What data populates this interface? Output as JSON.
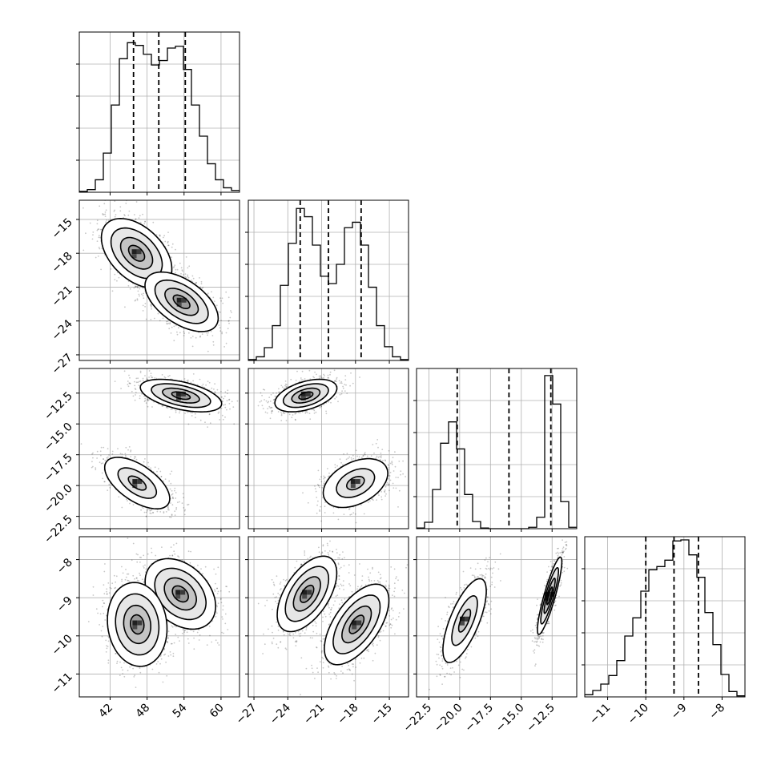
{
  "chart_data": {
    "type": "corner",
    "parameters": [
      {
        "index": 0,
        "range": [
          37,
          63
        ],
        "ticks": [
          42,
          48,
          54,
          60
        ],
        "tick_labels": [
          "42",
          "48",
          "54",
          "60"
        ],
        "quantiles": [
          45.8,
          49.9,
          54.2
        ]
      },
      {
        "index": 1,
        "range": [
          -27.5,
          -13.3
        ],
        "ticks": [
          -27,
          -24,
          -21,
          -18,
          -15
        ],
        "tick_labels": [
          "−27",
          "−24",
          "−21",
          "−18",
          "−15"
        ],
        "quantiles": [
          -22.9,
          -20.4,
          -17.5
        ]
      },
      {
        "index": 2,
        "range": [
          -23.5,
          -10.5
        ],
        "ticks": [
          -22.5,
          -20.0,
          -17.5,
          -15.0,
          -12.5
        ],
        "tick_labels": [
          "−22.5",
          "−20.0",
          "−17.5",
          "−15.0",
          "−12.5"
        ],
        "quantiles": [
          -20.2,
          -16.0,
          -12.6
        ]
      },
      {
        "index": 3,
        "range": [
          -11.6,
          -7.4
        ],
        "ticks": [
          -11,
          -10,
          -9,
          -8
        ],
        "tick_labels": [
          "−11",
          "−10",
          "−9",
          "−8"
        ],
        "quantiles": [
          -10.0,
          -9.26,
          -8.62
        ]
      }
    ],
    "histograms": [
      {
        "param": 0,
        "edges": [
          37.0,
          38.3,
          39.6,
          40.9,
          42.2,
          43.5,
          44.8,
          46.1,
          47.4,
          48.7,
          50.0,
          51.3,
          52.6,
          53.9,
          55.2,
          56.5,
          57.8,
          59.1,
          60.4,
          61.7,
          63.0
        ],
        "counts": [
          1,
          3,
          14,
          44,
          98,
          150,
          168,
          165,
          155,
          143,
          148,
          162,
          164,
          138,
          98,
          63,
          32,
          14,
          5,
          2
        ],
        "ymax": 180
      },
      {
        "param": 1,
        "edges": [
          -27.5,
          -26.79,
          -26.08,
          -25.37,
          -24.66,
          -23.95,
          -23.24,
          -22.53,
          -21.82,
          -21.11,
          -20.4,
          -19.69,
          -18.98,
          -18.27,
          -17.56,
          -16.85,
          -16.14,
          -15.43,
          -14.72,
          -14.01,
          -13.3
        ],
        "counts": [
          1,
          4,
          14,
          38,
          82,
          128,
          166,
          157,
          126,
          92,
          84,
          105,
          145,
          151,
          126,
          80,
          38,
          15,
          4,
          1
        ],
        "ymax": 175
      },
      {
        "param": 2,
        "edges": [
          -23.5,
          -22.85,
          -22.2,
          -21.55,
          -20.9,
          -20.25,
          -19.6,
          -18.95,
          -18.3,
          -17.65,
          -17.0,
          -16.35,
          -15.7,
          -15.05,
          -14.4,
          -13.75,
          -13.1,
          -12.45,
          -11.8,
          -11.15,
          -10.5
        ],
        "counts": [
          1,
          9,
          55,
          120,
          150,
          112,
          48,
          10,
          1,
          0,
          0,
          0,
          0,
          0,
          2,
          16,
          215,
          175,
          38,
          2
        ],
        "ymax": 225
      },
      {
        "param": 3,
        "edges": [
          -11.6,
          -11.39,
          -11.18,
          -10.97,
          -10.76,
          -10.55,
          -10.34,
          -10.13,
          -9.92,
          -9.71,
          -9.5,
          -9.29,
          -9.08,
          -8.87,
          -8.66,
          -8.45,
          -8.24,
          -8.03,
          -7.82,
          -7.61,
          -7.4
        ],
        "counts": [
          2,
          6,
          12,
          20,
          34,
          57,
          74,
          99,
          119,
          122,
          128,
          146,
          147,
          133,
          112,
          79,
          49,
          21,
          5,
          1
        ],
        "ymax": 150
      }
    ],
    "joint_distributions": [
      {
        "x_param": 0,
        "y_param": 1,
        "modes": [
          {
            "x": 46.3,
            "y": -18.0,
            "sx": 2.6,
            "sy": 1.4,
            "rho": -0.45,
            "weight": 0.5,
            "contours": [
              0.5,
              1.0,
              1.6,
              2.2
            ]
          },
          {
            "x": 53.6,
            "y": -22.3,
            "sx": 2.7,
            "sy": 1.2,
            "rho": -0.55,
            "weight": 0.5,
            "contours": [
              0.5,
              1.0,
              1.6,
              2.2
            ]
          }
        ]
      },
      {
        "x_param": 0,
        "y_param": 2,
        "modes": [
          {
            "x": 53.5,
            "y": -12.7,
            "sx": 3.0,
            "sy": 0.6,
            "rho": -0.5,
            "weight": 0.5,
            "contours": [
              0.5,
              1.0,
              1.6,
              2.2
            ]
          },
          {
            "x": 46.4,
            "y": -19.8,
            "sx": 2.4,
            "sy": 0.95,
            "rho": -0.6,
            "weight": 0.5,
            "contours": [
              0.6,
              1.3,
              2.2
            ]
          }
        ]
      },
      {
        "x_param": 1,
        "y_param": 2,
        "modes": [
          {
            "x": -22.4,
            "y": -12.7,
            "sx": 1.25,
            "sy": 0.6,
            "rho": 0.45,
            "weight": 0.5,
            "contours": [
              0.5,
              1.0,
              1.6,
              2.2
            ]
          },
          {
            "x": -18.0,
            "y": -19.8,
            "sx": 1.3,
            "sy": 0.9,
            "rho": 0.4,
            "weight": 0.5,
            "contours": [
              0.6,
              1.3,
              2.2
            ]
          }
        ]
      },
      {
        "x_param": 0,
        "y_param": 3,
        "modes": [
          {
            "x": 53.4,
            "y": -8.9,
            "sx": 2.6,
            "sy": 0.42,
            "rho": -0.35,
            "weight": 0.5,
            "contours": [
              0.5,
              1.0,
              1.6,
              2.2
            ]
          },
          {
            "x": 46.4,
            "y": -9.7,
            "sx": 2.2,
            "sy": 0.5,
            "rho": -0.1,
            "weight": 0.5,
            "contours": [
              0.5,
              1.0,
              1.6,
              2.2
            ]
          }
        ]
      },
      {
        "x_param": 1,
        "y_param": 3,
        "modes": [
          {
            "x": -22.3,
            "y": -8.9,
            "sx": 1.2,
            "sy": 0.45,
            "rho": 0.55,
            "weight": 0.5,
            "contours": [
              0.5,
              1.0,
              1.6,
              2.2
            ]
          },
          {
            "x": -17.9,
            "y": -9.7,
            "sx": 1.3,
            "sy": 0.48,
            "rho": 0.6,
            "weight": 0.5,
            "contours": [
              0.5,
              1.0,
              1.6,
              2.2
            ]
          }
        ]
      },
      {
        "x_param": 2,
        "y_param": 3,
        "modes": [
          {
            "x": -19.6,
            "y": -9.6,
            "sx": 0.8,
            "sy": 0.5,
            "rho": 0.7,
            "weight": 0.5,
            "contours": [
              0.6,
              1.3,
              2.2
            ]
          },
          {
            "x": -12.7,
            "y": -8.95,
            "sx": 0.45,
            "sy": 0.46,
            "rho": 0.88,
            "weight": 0.5,
            "contours": [
              0.5,
              1.0,
              1.6,
              2.2
            ]
          }
        ]
      }
    ],
    "grid": true,
    "title": "",
    "axis_labels": []
  }
}
